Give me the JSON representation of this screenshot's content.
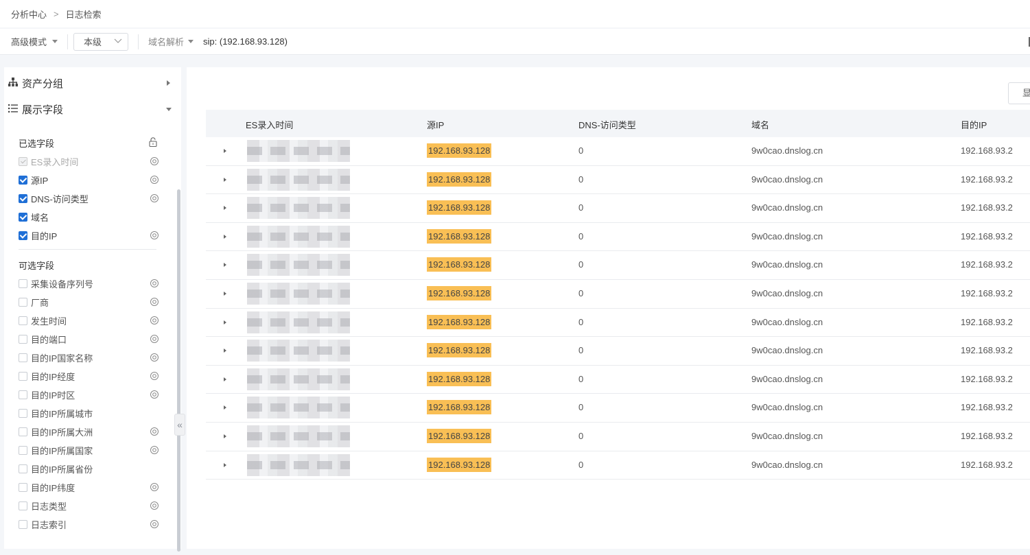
{
  "breadcrumb": {
    "parent": "分析中心",
    "separator": ">",
    "current": "日志检索"
  },
  "querybar": {
    "mode": "高级模式",
    "level": "本级",
    "domain_parse": "域名解析",
    "query": "sip: (192.168.93.128)"
  },
  "sidebar": {
    "asset_group": "资产分组",
    "display_fields": "展示字段",
    "selected_title": "已选字段",
    "selected": [
      {
        "label": "ES录入时间",
        "state": "disabled",
        "eye": true
      },
      {
        "label": "源IP",
        "state": "checked",
        "eye": true
      },
      {
        "label": "DNS-访问类型",
        "state": "checked",
        "eye": true
      },
      {
        "label": "域名",
        "state": "checked",
        "eye": false
      },
      {
        "label": "目的IP",
        "state": "checked",
        "eye": true
      }
    ],
    "optional_title": "可选字段",
    "optional": [
      {
        "label": "采集设备序列号",
        "eye": true
      },
      {
        "label": "厂商",
        "eye": true
      },
      {
        "label": "发生时间",
        "eye": true
      },
      {
        "label": "目的端口",
        "eye": true
      },
      {
        "label": "目的IP国家名称",
        "eye": true
      },
      {
        "label": "目的IP经度",
        "eye": true
      },
      {
        "label": "目的IP时区",
        "eye": true
      },
      {
        "label": "目的IP所属城市",
        "eye": false
      },
      {
        "label": "目的IP所属大洲",
        "eye": true
      },
      {
        "label": "目的IP所属国家",
        "eye": true
      },
      {
        "label": "目的IP所属省份",
        "eye": false
      },
      {
        "label": "目的IP纬度",
        "eye": true
      },
      {
        "label": "日志类型",
        "eye": true
      },
      {
        "label": "日志索引",
        "eye": true
      }
    ],
    "collapse_glyph": "«"
  },
  "main": {
    "display_button": "显示",
    "columns": [
      "ES录入时间",
      "源IP",
      "DNS-访问类型",
      "域名",
      "目的IP"
    ],
    "rows": [
      {
        "time": "",
        "sip": "192.168.93.128",
        "dns": "0",
        "domain": "9w0cao.dnslog.cn",
        "dip": "192.168.93.2"
      },
      {
        "time": "",
        "sip": "192.168.93.128",
        "dns": "0",
        "domain": "9w0cao.dnslog.cn",
        "dip": "192.168.93.2"
      },
      {
        "time": "",
        "sip": "192.168.93.128",
        "dns": "0",
        "domain": "9w0cao.dnslog.cn",
        "dip": "192.168.93.2"
      },
      {
        "time": "",
        "sip": "192.168.93.128",
        "dns": "0",
        "domain": "9w0cao.dnslog.cn",
        "dip": "192.168.93.2"
      },
      {
        "time": "",
        "sip": "192.168.93.128",
        "dns": "0",
        "domain": "9w0cao.dnslog.cn",
        "dip": "192.168.93.2"
      },
      {
        "time": "",
        "sip": "192.168.93.128",
        "dns": "0",
        "domain": "9w0cao.dnslog.cn",
        "dip": "192.168.93.2"
      },
      {
        "time": "",
        "sip": "192.168.93.128",
        "dns": "0",
        "domain": "9w0cao.dnslog.cn",
        "dip": "192.168.93.2"
      },
      {
        "time": "",
        "sip": "192.168.93.128",
        "dns": "0",
        "domain": "9w0cao.dnslog.cn",
        "dip": "192.168.93.2"
      },
      {
        "time": "",
        "sip": "192.168.93.128",
        "dns": "0",
        "domain": "9w0cao.dnslog.cn",
        "dip": "192.168.93.2"
      },
      {
        "time": "",
        "sip": "192.168.93.128",
        "dns": "0",
        "domain": "9w0cao.dnslog.cn",
        "dip": "192.168.93.2"
      },
      {
        "time": "",
        "sip": "192.168.93.128",
        "dns": "0",
        "domain": "9w0cao.dnslog.cn",
        "dip": "192.168.93.2"
      },
      {
        "time": "",
        "sip": "192.168.93.128",
        "dns": "0",
        "domain": "9w0cao.dnslog.cn",
        "dip": "192.168.93.2"
      }
    ]
  },
  "colors": {
    "accent": "#1f6fd6",
    "highlight": "#f9bf55",
    "header_bg": "#f3f5f8"
  }
}
